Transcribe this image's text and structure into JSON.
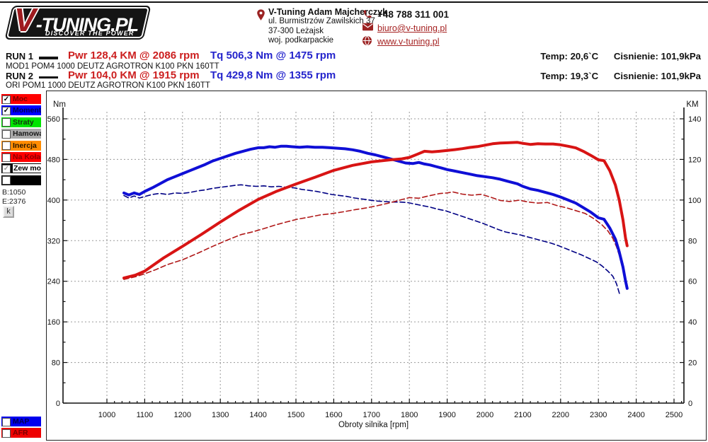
{
  "logo": {
    "v": "V",
    "rest": "-TUNING.PL",
    "tagline": "DISCOVER THE POWER"
  },
  "contact": {
    "name": "V-Tuning Adam Majcherczyk",
    "address_line1": "ul. Burmistrzów Zawilskich 37",
    "address_line2": "37-300 Leżajsk",
    "address_line3": "woj. podkarpackie",
    "phone": "+48 788 311 001",
    "email": "biuro@v-tuning.pl",
    "website": "www.v-tuning.pl"
  },
  "runs": [
    {
      "label": "RUN 1",
      "power": "Pwr  128,4 KM @ 2086 rpm",
      "torque": "Tq 506,3 Nm @ 1475 rpm",
      "temp": "Temp: 20,6`C",
      "pressure": "Cisnienie: 101,9kPa",
      "desc": "MOD1 POM4 1000 DEUTZ AGROTRON K100 PKN 160TT"
    },
    {
      "label": "RUN 2",
      "power": "Pwr  104,0 KM @ 1915 rpm",
      "torque": "Tq 429,8 Nm @ 1355 rpm",
      "temp": "Temp: 19,3`C",
      "pressure": "Cisnienie: 101,9kPa",
      "desc": "ORI POM1 1000 DEUTZ AGROTRON K100 PKN 160TT"
    }
  ],
  "sidebar": {
    "items": [
      {
        "name": "moc",
        "label": "Moc",
        "bg": "#ff0000",
        "fg": "#7a0000",
        "checked": true,
        "check_color": "#000"
      },
      {
        "name": "moment-obr",
        "label": "Moment obr",
        "bg": "#0000ff",
        "fg": "#000052",
        "checked": true,
        "check_color": "#000"
      },
      {
        "name": "straty",
        "label": "Straty",
        "bg": "#00e400",
        "fg": "#123312",
        "checked": false
      },
      {
        "name": "hamowana",
        "label": "Hamowana",
        "bg": "#a9a9a9",
        "fg": "#1a1a1a",
        "checked": false
      },
      {
        "name": "inercja",
        "label": "Inercja",
        "bg": "#ff8c00",
        "fg": "#241400",
        "checked": false
      },
      {
        "name": "na-kolach",
        "label": "Na Kołach",
        "bg": "#ff0000",
        "fg": "#8b0000",
        "checked": false
      },
      {
        "name": "zew-moc-str",
        "label": "Zew moc str",
        "bg": "#000000",
        "fg": "#000000",
        "label_bg": "#ffffff",
        "checked": true,
        "check_color": "#9a9a9a"
      },
      {
        "name": "blank",
        "label": "",
        "bg": "#000000",
        "fg": "#ffffff",
        "checked": false
      }
    ],
    "b_label": "B:1050",
    "e_label": "E:2376",
    "k_button": "k",
    "bottom_items": [
      {
        "name": "map",
        "label": "MAP",
        "bg": "#0000ee",
        "fg": "#000052",
        "checked": false
      },
      {
        "name": "afr",
        "label": "AFR",
        "bg": "#ee0000",
        "fg": "#7a0000",
        "checked": false
      }
    ]
  },
  "chart_data": {
    "type": "line",
    "xlabel": "Obroty silnika [rpm]",
    "x_range": [
      1000,
      2500
    ],
    "x_ticks": [
      1000,
      1100,
      1200,
      1300,
      1400,
      1500,
      1600,
      1700,
      1800,
      1900,
      2000,
      2100,
      2200,
      2300,
      2400,
      2500
    ],
    "left_axis": {
      "label": "Nm",
      "range": [
        0,
        560
      ],
      "ticks": [
        0,
        80,
        160,
        240,
        320,
        400,
        480,
        560
      ]
    },
    "right_axis": {
      "label": "KM",
      "range": [
        0,
        140
      ],
      "ticks": [
        0,
        20,
        40,
        60,
        80,
        100,
        120,
        140
      ]
    },
    "grid": true,
    "run_start_rpm": 1050,
    "run_end_rpm": 2376,
    "series": [
      {
        "name": "ori-torque",
        "run": "RUN 2",
        "unit": "Nm",
        "color": "#000084",
        "width": 1.6,
        "dash": "7,4",
        "points": [
          [
            1045,
            409
          ],
          [
            1058,
            404
          ],
          [
            1072,
            408
          ],
          [
            1086,
            404
          ],
          [
            1100,
            407
          ],
          [
            1120,
            411
          ],
          [
            1140,
            413
          ],
          [
            1160,
            411
          ],
          [
            1180,
            414
          ],
          [
            1200,
            413
          ],
          [
            1220,
            415
          ],
          [
            1240,
            418
          ],
          [
            1260,
            420
          ],
          [
            1280,
            423
          ],
          [
            1300,
            425
          ],
          [
            1320,
            427
          ],
          [
            1340,
            429
          ],
          [
            1355,
            430
          ],
          [
            1375,
            428
          ],
          [
            1395,
            427
          ],
          [
            1415,
            428
          ],
          [
            1435,
            426
          ],
          [
            1455,
            427
          ],
          [
            1475,
            425
          ],
          [
            1495,
            424
          ],
          [
            1515,
            421
          ],
          [
            1535,
            419
          ],
          [
            1555,
            417
          ],
          [
            1575,
            414
          ],
          [
            1595,
            411
          ],
          [
            1615,
            409
          ],
          [
            1635,
            407
          ],
          [
            1655,
            404
          ],
          [
            1675,
            402
          ],
          [
            1695,
            400
          ],
          [
            1715,
            398
          ],
          [
            1735,
            397
          ],
          [
            1755,
            396
          ],
          [
            1775,
            396
          ],
          [
            1795,
            395
          ],
          [
            1815,
            392
          ],
          [
            1835,
            389
          ],
          [
            1855,
            386
          ],
          [
            1875,
            382
          ],
          [
            1895,
            379
          ],
          [
            1915,
            374
          ],
          [
            1935,
            369
          ],
          [
            1955,
            364
          ],
          [
            1975,
            359
          ],
          [
            1995,
            354
          ],
          [
            2015,
            348
          ],
          [
            2035,
            342
          ],
          [
            2055,
            337
          ],
          [
            2075,
            334
          ],
          [
            2095,
            331
          ],
          [
            2115,
            327
          ],
          [
            2135,
            323
          ],
          [
            2155,
            319
          ],
          [
            2175,
            315
          ],
          [
            2195,
            310
          ],
          [
            2215,
            304
          ],
          [
            2235,
            298
          ],
          [
            2255,
            292
          ],
          [
            2275,
            285
          ],
          [
            2295,
            278
          ],
          [
            2310,
            270
          ],
          [
            2325,
            260
          ],
          [
            2338,
            250
          ],
          [
            2348,
            235
          ],
          [
            2356,
            215
          ]
        ]
      },
      {
        "name": "ori-power",
        "run": "RUN 2",
        "unit": "KM",
        "color": "#b01818",
        "width": 1.6,
        "dash": "7,4",
        "points": [
          [
            1045,
            60.9
          ],
          [
            1075,
            62.2
          ],
          [
            1100,
            63.7
          ],
          [
            1130,
            65.8
          ],
          [
            1160,
            68.2
          ],
          [
            1200,
            70.6
          ],
          [
            1240,
            73.8
          ],
          [
            1280,
            77.2
          ],
          [
            1320,
            80.4
          ],
          [
            1355,
            83.0
          ],
          [
            1385,
            84.3
          ],
          [
            1415,
            85.9
          ],
          [
            1445,
            87.7
          ],
          [
            1475,
            89.2
          ],
          [
            1505,
            90.6
          ],
          [
            1535,
            91.6
          ],
          [
            1565,
            92.7
          ],
          [
            1595,
            93.3
          ],
          [
            1625,
            94.2
          ],
          [
            1655,
            95.2
          ],
          [
            1685,
            96.1
          ],
          [
            1715,
            97.2
          ],
          [
            1745,
            98.5
          ],
          [
            1775,
            100.0
          ],
          [
            1800,
            101.2
          ],
          [
            1825,
            100.9
          ],
          [
            1850,
            102.0
          ],
          [
            1880,
            103.2
          ],
          [
            1900,
            103.5
          ],
          [
            1915,
            104.0
          ],
          [
            1940,
            102.9
          ],
          [
            1965,
            102.4
          ],
          [
            1990,
            102.8
          ],
          [
            2015,
            101.4
          ],
          [
            2040,
            99.8
          ],
          [
            2065,
            99.3
          ],
          [
            2090,
            99.9
          ],
          [
            2115,
            99.0
          ],
          [
            2140,
            98.5
          ],
          [
            2165,
            98.8
          ],
          [
            2190,
            97.3
          ],
          [
            2215,
            96.2
          ],
          [
            2240,
            94.8
          ],
          [
            2265,
            93.4
          ],
          [
            2290,
            90.6
          ],
          [
            2310,
            87.7
          ],
          [
            2325,
            84.8
          ],
          [
            2338,
            81.2
          ],
          [
            2348,
            77.0
          ],
          [
            2354,
            73.5
          ]
        ]
      },
      {
        "name": "mod-torque",
        "run": "RUN 1",
        "unit": "Nm",
        "color": "#0f0fd6",
        "width": 4,
        "dash": null,
        "points": [
          [
            1045,
            414
          ],
          [
            1058,
            410
          ],
          [
            1072,
            414
          ],
          [
            1086,
            411
          ],
          [
            1100,
            417
          ],
          [
            1120,
            424
          ],
          [
            1140,
            432
          ],
          [
            1160,
            440
          ],
          [
            1180,
            446
          ],
          [
            1200,
            452
          ],
          [
            1220,
            458
          ],
          [
            1240,
            464
          ],
          [
            1260,
            470
          ],
          [
            1280,
            477
          ],
          [
            1300,
            482
          ],
          [
            1320,
            487
          ],
          [
            1340,
            492
          ],
          [
            1360,
            496
          ],
          [
            1380,
            500
          ],
          [
            1400,
            503
          ],
          [
            1415,
            503
          ],
          [
            1430,
            505
          ],
          [
            1445,
            504
          ],
          [
            1460,
            506
          ],
          [
            1475,
            506
          ],
          [
            1490,
            505
          ],
          [
            1510,
            504
          ],
          [
            1530,
            505
          ],
          [
            1550,
            504
          ],
          [
            1570,
            504
          ],
          [
            1590,
            503
          ],
          [
            1610,
            502
          ],
          [
            1630,
            501
          ],
          [
            1650,
            499
          ],
          [
            1670,
            496
          ],
          [
            1690,
            492
          ],
          [
            1710,
            489
          ],
          [
            1730,
            485
          ],
          [
            1750,
            481
          ],
          [
            1770,
            477
          ],
          [
            1790,
            473
          ],
          [
            1810,
            472
          ],
          [
            1825,
            474
          ],
          [
            1840,
            471
          ],
          [
            1855,
            469
          ],
          [
            1870,
            466
          ],
          [
            1885,
            463
          ],
          [
            1900,
            460
          ],
          [
            1920,
            457
          ],
          [
            1940,
            454
          ],
          [
            1960,
            451
          ],
          [
            1980,
            448
          ],
          [
            2000,
            446
          ],
          [
            2020,
            444
          ],
          [
            2040,
            441
          ],
          [
            2060,
            437
          ],
          [
            2086,
            432
          ],
          [
            2100,
            427
          ],
          [
            2120,
            422
          ],
          [
            2140,
            419
          ],
          [
            2160,
            415
          ],
          [
            2180,
            411
          ],
          [
            2200,
            406
          ],
          [
            2220,
            400
          ],
          [
            2240,
            394
          ],
          [
            2260,
            385
          ],
          [
            2280,
            376
          ],
          [
            2300,
            365
          ],
          [
            2315,
            362
          ],
          [
            2330,
            345
          ],
          [
            2345,
            323
          ],
          [
            2355,
            298
          ],
          [
            2365,
            268
          ],
          [
            2372,
            240
          ],
          [
            2376,
            226
          ]
        ]
      },
      {
        "name": "mod-power",
        "run": "RUN 1",
        "unit": "KM",
        "color": "#d81414",
        "width": 4,
        "dash": null,
        "points": [
          [
            1045,
            61.6
          ],
          [
            1075,
            63.0
          ],
          [
            1100,
            65.0
          ],
          [
            1150,
            71.5
          ],
          [
            1200,
            77.2
          ],
          [
            1250,
            83.1
          ],
          [
            1300,
            89.2
          ],
          [
            1350,
            95.0
          ],
          [
            1400,
            100.3
          ],
          [
            1450,
            104.4
          ],
          [
            1500,
            107.9
          ],
          [
            1550,
            111.2
          ],
          [
            1600,
            114.6
          ],
          [
            1650,
            117.1
          ],
          [
            1700,
            118.8
          ],
          [
            1750,
            119.8
          ],
          [
            1780,
            120.3
          ],
          [
            1800,
            121.0
          ],
          [
            1820,
            122.5
          ],
          [
            1840,
            124.0
          ],
          [
            1860,
            123.7
          ],
          [
            1880,
            124.0
          ],
          [
            1900,
            124.4
          ],
          [
            1920,
            124.8
          ],
          [
            1940,
            125.3
          ],
          [
            1960,
            125.9
          ],
          [
            1980,
            126.3
          ],
          [
            2000,
            127.0
          ],
          [
            2020,
            127.7
          ],
          [
            2040,
            128.1
          ],
          [
            2060,
            128.2
          ],
          [
            2086,
            128.4
          ],
          [
            2100,
            127.9
          ],
          [
            2120,
            127.4
          ],
          [
            2140,
            127.7
          ],
          [
            2160,
            127.6
          ],
          [
            2180,
            127.6
          ],
          [
            2200,
            127.2
          ],
          [
            2220,
            126.5
          ],
          [
            2240,
            125.7
          ],
          [
            2260,
            124.0
          ],
          [
            2280,
            122.0
          ],
          [
            2300,
            119.8
          ],
          [
            2315,
            119.4
          ],
          [
            2330,
            114.5
          ],
          [
            2345,
            107.4
          ],
          [
            2355,
            100.0
          ],
          [
            2365,
            90.2
          ],
          [
            2372,
            81.1
          ],
          [
            2376,
            77.5
          ]
        ]
      }
    ]
  }
}
